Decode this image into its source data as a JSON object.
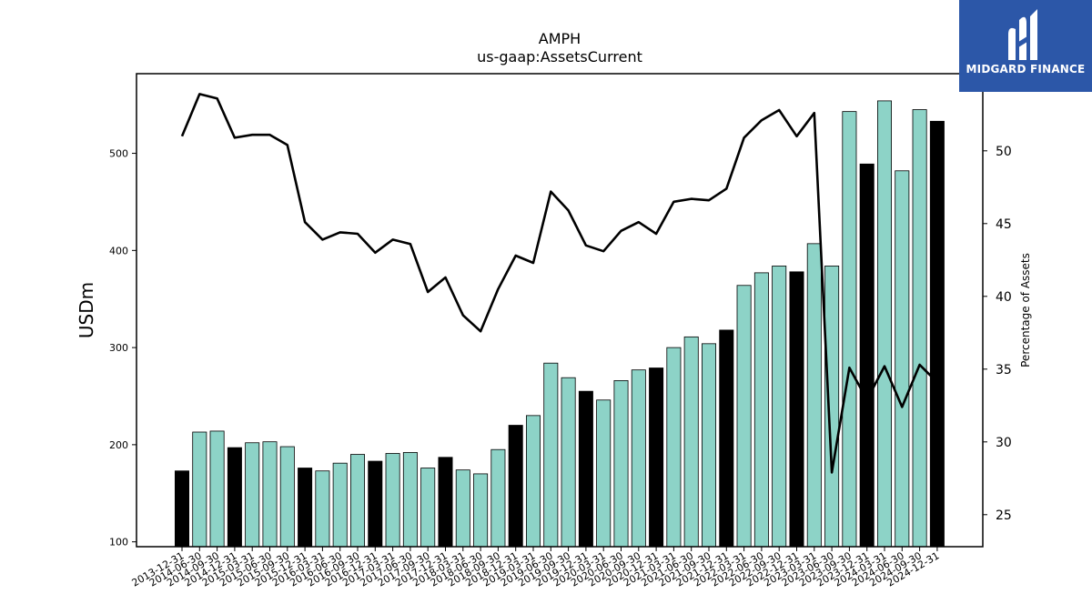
{
  "chart_data": {
    "type": "bar",
    "title": "AMPH",
    "subtitle": "us-gaap:AssetsCurrent",
    "ylabel": "USDm",
    "y2label": "Percentage of Assets",
    "ylim": [
      95,
      582
    ],
    "y2lim": [
      22.8,
      55.3
    ],
    "yticks": [
      100,
      200,
      300,
      400,
      500
    ],
    "y2ticks": [
      25,
      30,
      35,
      40,
      45,
      50
    ],
    "categories": [
      "2013-12-31",
      "2014-06-30",
      "2014-09-30",
      "2014-12-31",
      "2015-03-31",
      "2015-06-30",
      "2015-09-30",
      "2015-12-31",
      "2016-03-31",
      "2016-06-30",
      "2016-09-30",
      "2016-12-31",
      "2017-03-31",
      "2017-06-30",
      "2017-09-30",
      "2017-12-31",
      "2018-03-31",
      "2018-06-30",
      "2018-09-30",
      "2018-12-31",
      "2019-03-31",
      "2019-06-30",
      "2019-09-30",
      "2019-12-31",
      "2020-03-31",
      "2020-06-30",
      "2020-09-30",
      "2020-12-31",
      "2021-03-31",
      "2021-06-30",
      "2021-09-30",
      "2021-12-31",
      "2022-03-31",
      "2022-06-30",
      "2022-09-30",
      "2022-12-31",
      "2023-03-31",
      "2023-06-30",
      "2023-09-30",
      "2023-12-31",
      "2024-03-31",
      "2024-06-30",
      "2024-09-30",
      "2024-12-31"
    ],
    "series": [
      {
        "type": "bar",
        "values": [
          173,
          213,
          214,
          197,
          202,
          203,
          198,
          176,
          173,
          181,
          190,
          183,
          191,
          192,
          176,
          187,
          174,
          170,
          195,
          220,
          230,
          284,
          269,
          255,
          246,
          266,
          277,
          279,
          300,
          311,
          304,
          318,
          364,
          377,
          384,
          378,
          407,
          384,
          543,
          489,
          554,
          482,
          545,
          533
        ],
        "colors": [
          "#000000",
          "#8dd3c7",
          "#8dd3c7",
          "#000000",
          "#8dd3c7",
          "#8dd3c7",
          "#8dd3c7",
          "#000000",
          "#8dd3c7",
          "#8dd3c7",
          "#8dd3c7",
          "#000000",
          "#8dd3c7",
          "#8dd3c7",
          "#8dd3c7",
          "#000000",
          "#8dd3c7",
          "#8dd3c7",
          "#8dd3c7",
          "#000000",
          "#8dd3c7",
          "#8dd3c7",
          "#8dd3c7",
          "#000000",
          "#8dd3c7",
          "#8dd3c7",
          "#8dd3c7",
          "#000000",
          "#8dd3c7",
          "#8dd3c7",
          "#8dd3c7",
          "#000000",
          "#8dd3c7",
          "#8dd3c7",
          "#8dd3c7",
          "#000000",
          "#8dd3c7",
          "#8dd3c7",
          "#8dd3c7",
          "#000000",
          "#8dd3c7",
          "#8dd3c7",
          "#8dd3c7",
          "#000000"
        ]
      },
      {
        "type": "line",
        "axis": "right",
        "color": "#000000",
        "values": [
          51.0,
          53.9,
          53.6,
          50.9,
          51.1,
          51.1,
          50.4,
          45.1,
          43.9,
          44.4,
          44.3,
          43.0,
          43.9,
          43.6,
          40.3,
          41.3,
          38.7,
          37.6,
          40.5,
          42.8,
          42.3,
          47.2,
          45.9,
          43.5,
          43.1,
          44.5,
          45.1,
          44.3,
          46.5,
          46.7,
          46.6,
          47.4,
          50.9,
          52.1,
          52.8,
          51.0,
          52.6,
          27.9,
          35.1,
          32.9,
          35.2,
          32.4,
          35.3,
          34.1
        ]
      }
    ]
  },
  "logo": {
    "text": "MIDGARD FINANCE",
    "background": "#2c57a8"
  }
}
